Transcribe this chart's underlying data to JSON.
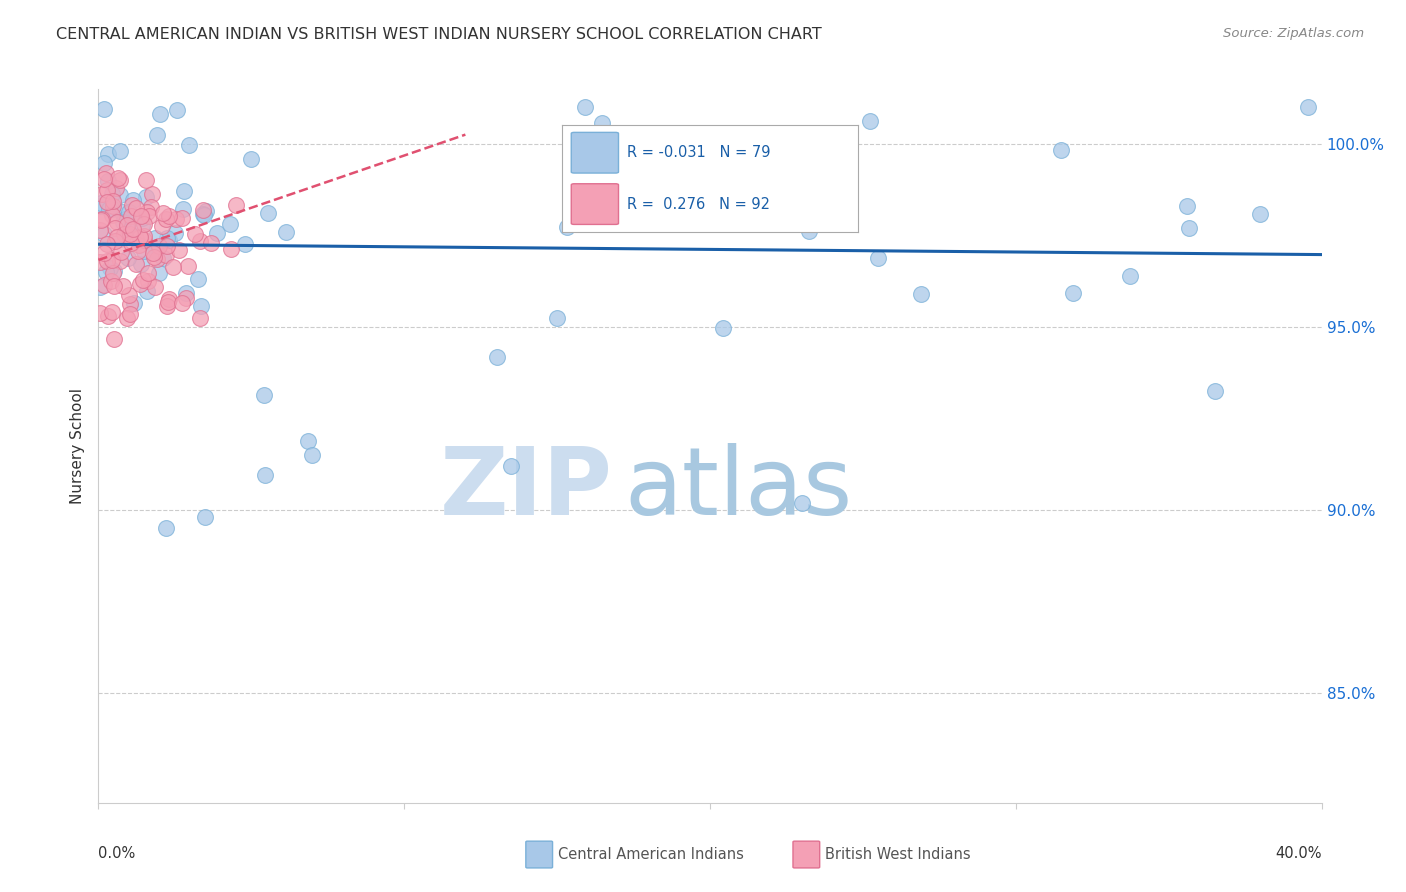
{
  "title": "CENTRAL AMERICAN INDIAN VS BRITISH WEST INDIAN NURSERY SCHOOL CORRELATION CHART",
  "source": "Source: ZipAtlas.com",
  "ylabel": "Nursery School",
  "xlim": [
    0.0,
    40.0
  ],
  "ylim": [
    82.0,
    101.5
  ],
  "yticks": [
    85.0,
    90.0,
    95.0,
    100.0
  ],
  "ytick_labels": [
    "85.0%",
    "90.0%",
    "95.0%",
    "100.0%"
  ],
  "r_blue": -0.031,
  "n_blue": 79,
  "r_pink": 0.276,
  "n_pink": 92,
  "blue_face": "#a8c8e8",
  "blue_edge": "#7ab0d8",
  "pink_face": "#f4a0b5",
  "pink_edge": "#e07090",
  "blue_line_color": "#1a5fa8",
  "pink_line_color": "#e05070",
  "grid_color": "#cccccc",
  "title_color": "#333333",
  "source_color": "#888888",
  "ylabel_color": "#333333",
  "right_tick_color": "#1a6fd4",
  "watermark_zip_color": "#ccddef",
  "watermark_atlas_color": "#a8c8e0"
}
